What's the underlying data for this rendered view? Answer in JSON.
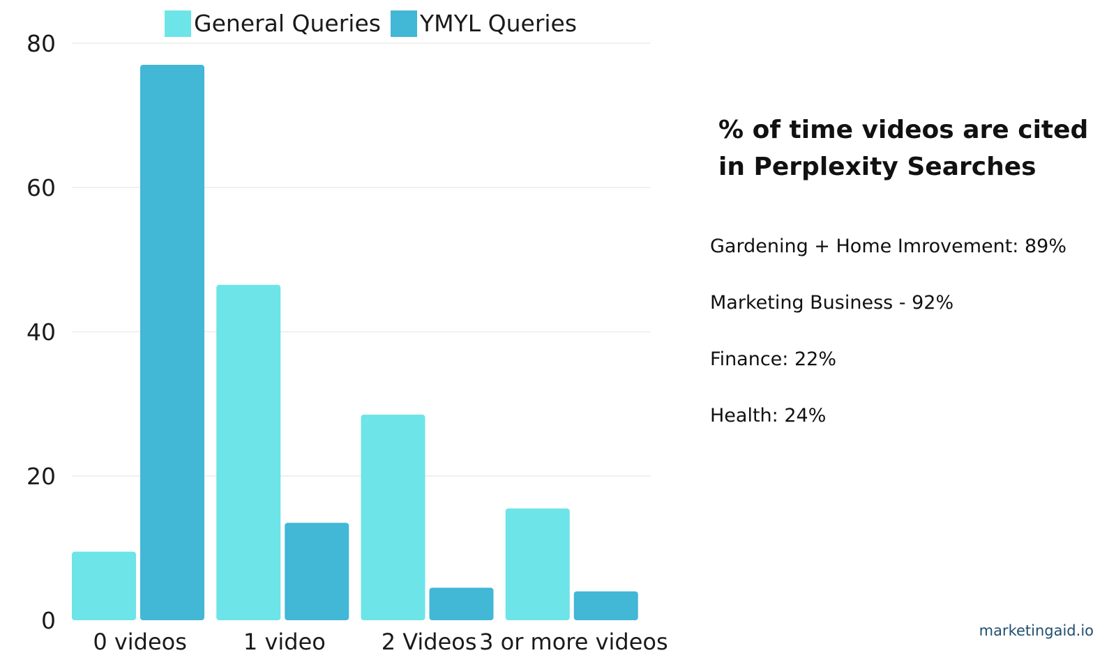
{
  "chart_data": {
    "type": "bar",
    "categories": [
      "0 videos",
      "1 video",
      "2 Videos",
      "3 or more videos"
    ],
    "series": [
      {
        "name": "General Queries",
        "color": "#6ce4e8",
        "values": [
          9.5,
          46.5,
          28.5,
          15.5
        ]
      },
      {
        "name": "YMYL Queries",
        "color": "#42b7d6",
        "values": [
          77,
          13.5,
          4.5,
          4
        ]
      }
    ],
    "yticks": [
      0,
      20,
      40,
      60,
      80
    ],
    "ylim": [
      0,
      80
    ],
    "grid": true,
    "legend_position": "top"
  },
  "side_panel": {
    "title": "% of time videos are cited in Perplexity Searches",
    "notes": [
      "Gardening + Home Imrovement: 89%",
      "Marketing Business - 92%",
      "Finance: 22%",
      "Health: 24%"
    ]
  },
  "footer": {
    "brand": "marketingaid.io"
  }
}
